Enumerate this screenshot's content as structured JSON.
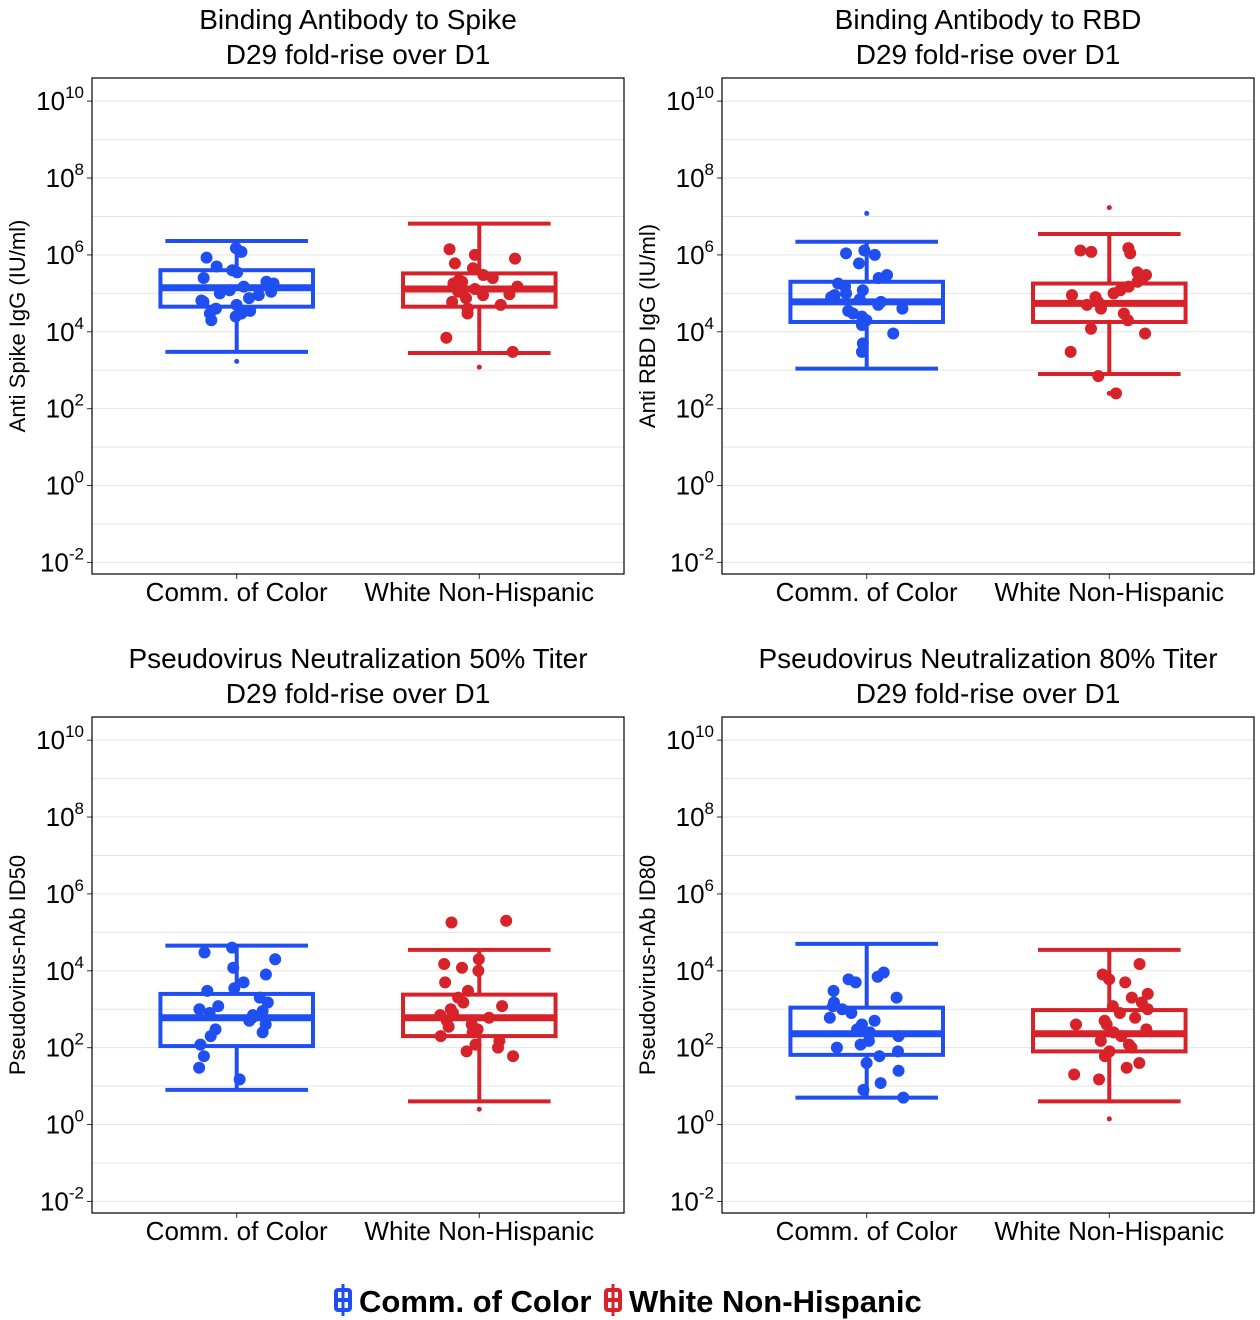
{
  "colors": {
    "comm_of_color": "#1F4FF0",
    "white_non_hispanic": "#D62228",
    "grid": "#e5e5e5",
    "frame": "#000000"
  },
  "legend": {
    "position": "bottom",
    "items": [
      {
        "label": "Comm. of Color",
        "color": "#1F4FF0"
      },
      {
        "label": "White Non-Hispanic",
        "color": "#D62228"
      }
    ]
  },
  "chart_data": [
    {
      "type": "box",
      "title": "Binding Antibody to Spike",
      "subtitle": "D29 fold-rise over D1",
      "xlabel": "",
      "ylabel": "Anti Spike IgG (IU/ml)",
      "y_scale": "log10",
      "ylim": [
        0.005,
        40000000000.0
      ],
      "y_ticks": [
        {
          "base": "10",
          "exp": "10",
          "value": 10000000000.0
        },
        {
          "base": "10",
          "exp": "8",
          "value": 100000000.0
        },
        {
          "base": "10",
          "exp": "6",
          "value": 1000000.0
        },
        {
          "base": "10",
          "exp": "4",
          "value": 10000.0
        },
        {
          "base": "10",
          "exp": "2",
          "value": 100
        },
        {
          "base": "10",
          "exp": "0",
          "value": 1
        },
        {
          "base": "10",
          "exp": "-2",
          "value": 0.01
        }
      ],
      "grid": true,
      "categories": [
        "Comm. of Color",
        "White Non-Hispanic"
      ],
      "groups": [
        {
          "name": "Comm. of Color",
          "whisker_low": 3000,
          "q1": 45000,
          "median": 140000,
          "q3": 400000,
          "whisker_high": 2300000,
          "outliers": [
            1700
          ],
          "points": [
            1500000,
            1200000,
            850000,
            500000,
            400000,
            350000,
            250000,
            200000,
            150000,
            120000,
            100000,
            90000,
            75000,
            60000,
            50000,
            40000,
            35000,
            30000,
            30000,
            25000,
            20000,
            65000,
            110000,
            180000
          ]
        },
        {
          "name": "White Non-Hispanic",
          "whisker_low": 2800,
          "q1": 45000,
          "median": 130000,
          "q3": 330000,
          "whisker_high": 6500000,
          "outliers": [
            1200
          ],
          "points": [
            1400000,
            1000000,
            800000,
            600000,
            450000,
            300000,
            250000,
            200000,
            180000,
            150000,
            130000,
            110000,
            90000,
            75000,
            60000,
            50000,
            40000,
            30000,
            7000,
            3000,
            220000,
            95000
          ]
        }
      ]
    },
    {
      "type": "box",
      "title": "Binding Antibody to RBD",
      "subtitle": "D29 fold-rise over D1",
      "xlabel": "",
      "ylabel": "Anti RBD IgG (IU/ml)",
      "y_scale": "log10",
      "ylim": [
        0.005,
        40000000000.0
      ],
      "y_ticks": [
        {
          "base": "10",
          "exp": "10",
          "value": 10000000000.0
        },
        {
          "base": "10",
          "exp": "8",
          "value": 100000000.0
        },
        {
          "base": "10",
          "exp": "6",
          "value": 1000000.0
        },
        {
          "base": "10",
          "exp": "4",
          "value": 10000.0
        },
        {
          "base": "10",
          "exp": "2",
          "value": 100
        },
        {
          "base": "10",
          "exp": "0",
          "value": 1
        },
        {
          "base": "10",
          "exp": "-2",
          "value": 0.01
        }
      ],
      "grid": true,
      "categories": [
        "Comm. of Color",
        "White Non-Hispanic"
      ],
      "groups": [
        {
          "name": "Comm. of Color",
          "whisker_low": 1100,
          "q1": 18000,
          "median": 60000,
          "q3": 200000,
          "whisker_high": 2200000,
          "outliers": [
            12000000
          ],
          "points": [
            1300000,
            1100000,
            1000000,
            600000,
            300000,
            250000,
            180000,
            150000,
            120000,
            90000,
            80000,
            70000,
            60000,
            50000,
            40000,
            30000,
            25000,
            20000,
            15000,
            9000,
            5000,
            3000,
            35000,
            100000
          ]
        },
        {
          "name": "White Non-Hispanic",
          "whisker_low": 800,
          "q1": 18000,
          "median": 55000,
          "q3": 180000,
          "whisker_high": 3500000,
          "outliers": [
            17000000,
            250
          ],
          "points": [
            1500000,
            1300000,
            1200000,
            1100000,
            350000,
            300000,
            250000,
            200000,
            150000,
            120000,
            100000,
            90000,
            80000,
            60000,
            50000,
            40000,
            30000,
            20000,
            12000,
            9000,
            3000,
            700,
            250
          ]
        }
      ]
    },
    {
      "type": "box",
      "title": "Pseudovirus Neutralization 50% Titer",
      "subtitle": "D29 fold-rise over D1",
      "xlabel": "",
      "ylabel": "Pseudovirus-nAb ID50",
      "y_scale": "log10",
      "ylim": [
        0.005,
        40000000000.0
      ],
      "y_ticks": [
        {
          "base": "10",
          "exp": "10",
          "value": 10000000000.0
        },
        {
          "base": "10",
          "exp": "8",
          "value": 100000000.0
        },
        {
          "base": "10",
          "exp": "6",
          "value": 1000000.0
        },
        {
          "base": "10",
          "exp": "4",
          "value": 10000.0
        },
        {
          "base": "10",
          "exp": "2",
          "value": 100
        },
        {
          "base": "10",
          "exp": "0",
          "value": 1
        },
        {
          "base": "10",
          "exp": "-2",
          "value": 0.01
        }
      ],
      "grid": true,
      "categories": [
        "Comm. of Color",
        "White Non-Hispanic"
      ],
      "groups": [
        {
          "name": "Comm. of Color",
          "whisker_low": 8,
          "q1": 110,
          "median": 600,
          "q3": 2500,
          "whisker_high": 45000,
          "outliers": [],
          "points": [
            40000,
            30000,
            20000,
            12000,
            8000,
            5000,
            3500,
            3000,
            2000,
            1500,
            1200,
            1000,
            800,
            700,
            600,
            500,
            400,
            300,
            250,
            200,
            120,
            60,
            30,
            15,
            900
          ]
        },
        {
          "name": "White Non-Hispanic",
          "whisker_low": 4,
          "q1": 200,
          "median": 600,
          "q3": 2400,
          "whisker_high": 35000,
          "outliers": [
            2.5
          ],
          "points": [
            200000,
            180000,
            20000,
            15000,
            12000,
            10000,
            5000,
            3000,
            2000,
            1500,
            1200,
            1000,
            800,
            700,
            600,
            500,
            400,
            350,
            300,
            250,
            200,
            150,
            120,
            100,
            80,
            60
          ]
        }
      ]
    },
    {
      "type": "box",
      "title": "Pseudovirus Neutralization 80% Titer",
      "subtitle": "D29 fold-rise over D1",
      "xlabel": "",
      "ylabel": "Pseudovirus-nAb ID80",
      "y_scale": "log10",
      "ylim": [
        0.005,
        40000000000.0
      ],
      "y_ticks": [
        {
          "base": "10",
          "exp": "10",
          "value": 10000000000.0
        },
        {
          "base": "10",
          "exp": "8",
          "value": 100000000.0
        },
        {
          "base": "10",
          "exp": "6",
          "value": 1000000.0
        },
        {
          "base": "10",
          "exp": "4",
          "value": 10000.0
        },
        {
          "base": "10",
          "exp": "2",
          "value": 100
        },
        {
          "base": "10",
          "exp": "0",
          "value": 1
        },
        {
          "base": "10",
          "exp": "-2",
          "value": 0.01
        }
      ],
      "grid": true,
      "categories": [
        "Comm. of Color",
        "White Non-Hispanic"
      ],
      "groups": [
        {
          "name": "Comm. of Color",
          "whisker_low": 5,
          "q1": 65,
          "median": 230,
          "q3": 1100,
          "whisker_high": 50000,
          "outliers": [],
          "points": [
            9000,
            7000,
            6000,
            5000,
            3000,
            2000,
            1500,
            1200,
            1000,
            800,
            600,
            500,
            400,
            300,
            250,
            200,
            150,
            120,
            100,
            80,
            60,
            40,
            25,
            12,
            8,
            5
          ]
        },
        {
          "name": "White Non-Hispanic",
          "whisker_low": 4,
          "q1": 80,
          "median": 230,
          "q3": 950,
          "whisker_high": 35000,
          "outliers": [
            1.4
          ],
          "points": [
            15000,
            8000,
            6000,
            5000,
            2000,
            1500,
            1200,
            1000,
            800,
            600,
            500,
            400,
            300,
            250,
            200,
            150,
            120,
            100,
            80,
            60,
            40,
            30,
            20,
            15,
            400,
            2500
          ]
        }
      ]
    }
  ]
}
